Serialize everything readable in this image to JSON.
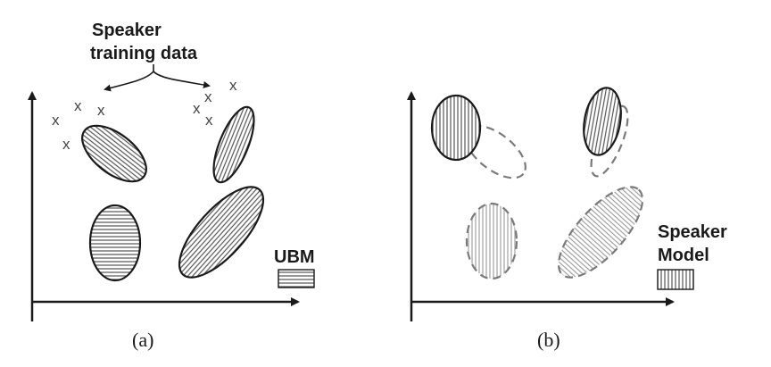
{
  "panel_a": {
    "caption": "(a)",
    "annotation_line1": "Speaker",
    "annotation_line2": "training data",
    "legend_label": "UBM",
    "marker_glyph": "x"
  },
  "panel_b": {
    "caption": "(b)",
    "legend_line1": "Speaker",
    "legend_line2": "Model"
  },
  "colors": {
    "stroke": "#1a1a1a",
    "dashed": "#7a7a7a",
    "hatch": "#555555",
    "hatch_light": "#888888"
  }
}
